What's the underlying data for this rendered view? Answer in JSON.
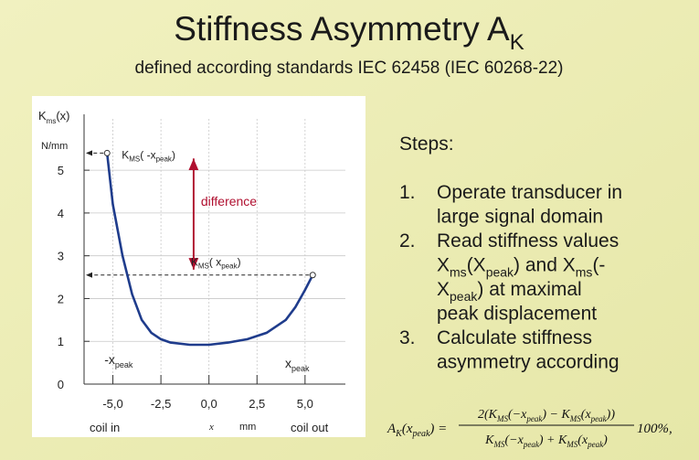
{
  "title": [
    "Stiffness Asymmetry A",
    {
      "sub": "K"
    }
  ],
  "subtitle": "defined according standards  IEC 62458 (IEC 60268-22)",
  "chart": {
    "type": "line",
    "y_label": [
      "K",
      {
        "sub": "ms"
      },
      "(x)"
    ],
    "y_unit": "N/mm",
    "x_label": "x",
    "x_unit": "mm",
    "x_left_label": "coil in",
    "x_right_label": "coil out",
    "xlim": [
      -6.5,
      7.1
    ],
    "ylim": [
      0,
      6.2
    ],
    "xticks": [
      {
        "value": -5,
        "label": "-5,0"
      },
      {
        "value": -2.5,
        "label": "-2,5"
      },
      {
        "value": 0,
        "label": "0,0"
      },
      {
        "value": 2.5,
        "label": "2,5"
      },
      {
        "value": 5,
        "label": "5,0"
      }
    ],
    "yticks": [
      0,
      1,
      2,
      3,
      4,
      5
    ],
    "grid": true,
    "color": "#1f3c8c",
    "x": [
      -5.3,
      -5,
      -4.5,
      -4,
      -3.5,
      -3,
      -2.5,
      -2,
      -1,
      0,
      1,
      2,
      3,
      4,
      4.5,
      5,
      5.4
    ],
    "values": [
      5.4,
      4.2,
      3.0,
      2.1,
      1.5,
      1.2,
      1.05,
      0.97,
      0.92,
      0.92,
      0.97,
      1.05,
      1.2,
      1.5,
      1.8,
      2.2,
      2.55
    ],
    "annotations": {
      "kms_neg": [
        "K",
        {
          "sub": "MS"
        },
        "( -x",
        {
          "sub": "peak"
        },
        ")"
      ],
      "difference": "difference",
      "kms_pos": [
        "K",
        {
          "sub": "MS"
        },
        "( x",
        {
          "sub": "peak"
        },
        ")"
      ],
      "neg_xpeak": [
        "-x",
        {
          "sub": "peak"
        }
      ],
      "xpeak": [
        "x",
        {
          "sub": "peak"
        }
      ]
    }
  },
  "steps_heading": "Steps:",
  "steps": [
    {
      "number": "1.",
      "lines": [
        "Operate transducer in",
        "large signal domain"
      ]
    },
    {
      "number": "2.",
      "lines": [
        "Read stiffness values",
        [
          "X",
          {
            "sub": "ms"
          },
          "(X",
          {
            "sub": "peak"
          },
          ") and X",
          {
            "sub": "ms"
          },
          "(-"
        ],
        [
          "X",
          {
            "sub": "peak"
          },
          ") at maximal"
        ],
        "peak displacement"
      ]
    },
    {
      "number": "3.",
      "lines": [
        "Calculate stiffness",
        "asymmetry according"
      ]
    }
  ],
  "formula": {
    "lhs": [
      "A",
      {
        "sub": "K"
      },
      "(x",
      {
        "sub": "peak"
      },
      ") ="
    ],
    "numerator": [
      "2(K",
      {
        "sub": "MS"
      },
      "(−x",
      {
        "sub": "peak"
      },
      ") − K",
      {
        "sub": "MS"
      },
      "(x",
      {
        "sub": "peak"
      },
      "))"
    ],
    "denominator": [
      "K",
      {
        "sub": "MS"
      },
      "(−x",
      {
        "sub": "peak"
      },
      ") + K",
      {
        "sub": "MS"
      },
      "(x",
      {
        "sub": "peak"
      },
      ")"
    ],
    "suffix": "100%,"
  }
}
